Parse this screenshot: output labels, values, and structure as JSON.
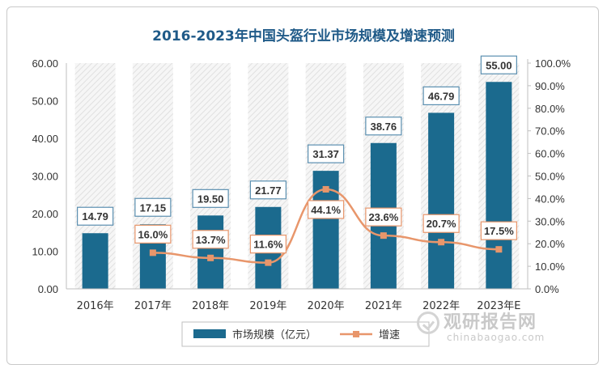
{
  "chart_data": {
    "type": "bar+line",
    "title": "2016-2023年中国头盔行业市场规模及增速预测",
    "categories": [
      "2016年",
      "2017年",
      "2018年",
      "2019年",
      "2020年",
      "2021年",
      "2022年",
      "2023年E"
    ],
    "series": [
      {
        "name": "市场规模（亿元）",
        "type": "bar",
        "axis": "left",
        "values": [
          14.79,
          17.15,
          19.5,
          21.77,
          31.37,
          38.76,
          46.79,
          55.0
        ],
        "labels": [
          "14.79",
          "17.15",
          "19.50",
          "21.77",
          "31.37",
          "38.76",
          "46.79",
          "55.00"
        ],
        "color": "#1b6a8e"
      },
      {
        "name": "增速",
        "type": "line",
        "axis": "right",
        "values": [
          null,
          16.0,
          13.7,
          11.6,
          44.1,
          23.6,
          20.7,
          17.5
        ],
        "labels": [
          null,
          "16.0%",
          "13.7%",
          "11.6%",
          "44.1%",
          "23.6%",
          "20.7%",
          "17.5%"
        ],
        "color": "#e8966b"
      }
    ],
    "y_left": {
      "min": 0,
      "max": 60,
      "ticks": [
        "0.00",
        "10.00",
        "20.00",
        "30.00",
        "40.00",
        "50.00",
        "60.00"
      ]
    },
    "y_right": {
      "min": 0,
      "max": 100,
      "ticks": [
        "0.0%",
        "10.0%",
        "20.0%",
        "30.0%",
        "40.0%",
        "50.0%",
        "60.0%",
        "70.0%",
        "80.0%",
        "90.0%",
        "100.0%"
      ]
    },
    "legend_position": "bottom",
    "grid": false
  },
  "watermark": {
    "logo_text": "观研报告网",
    "url_text": "chinabaogao.com"
  },
  "colors": {
    "title": "#1f5a88",
    "bar": "#1b6a8e",
    "line": "#e8966b",
    "label_border": "#5b8fb0",
    "axis_text": "#333333"
  }
}
